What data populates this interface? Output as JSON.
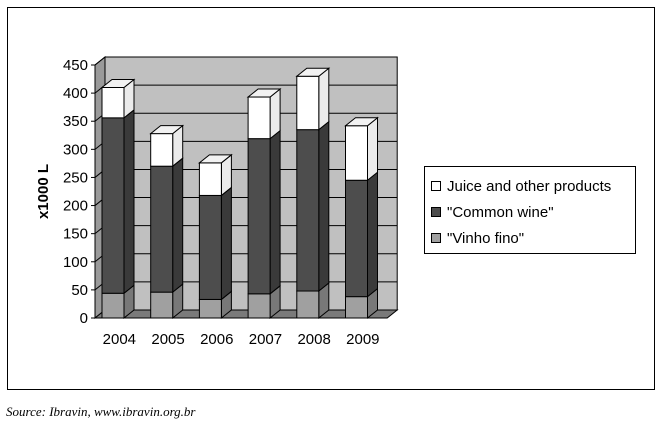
{
  "chart_data": {
    "type": "bar",
    "stacked": true,
    "three_d": true,
    "categories": [
      "2004",
      "2005",
      "2006",
      "2007",
      "2008",
      "2009"
    ],
    "series": [
      {
        "name": "\"Vinho fino\"",
        "values": [
          44,
          46,
          33,
          43,
          48,
          38
        ],
        "color": "#a0a0a0"
      },
      {
        "name": "\"Common wine\"",
        "values": [
          312,
          224,
          185,
          276,
          287,
          207
        ],
        "color": "#4d4d4d"
      },
      {
        "name": "Juice and other products",
        "values": [
          54,
          58,
          58,
          74,
          95,
          97
        ],
        "color": "#ffffff"
      }
    ],
    "ylabel": "x1000 L",
    "xlabel": "",
    "ylim": [
      0,
      450
    ],
    "yticks": [
      0,
      50,
      100,
      150,
      200,
      250,
      300,
      350,
      400,
      450
    ],
    "grid": true,
    "wall_color": "#c0c0c0",
    "legend_position": "right"
  },
  "source": "Source: Ibravin, www.ibravin.org.br"
}
